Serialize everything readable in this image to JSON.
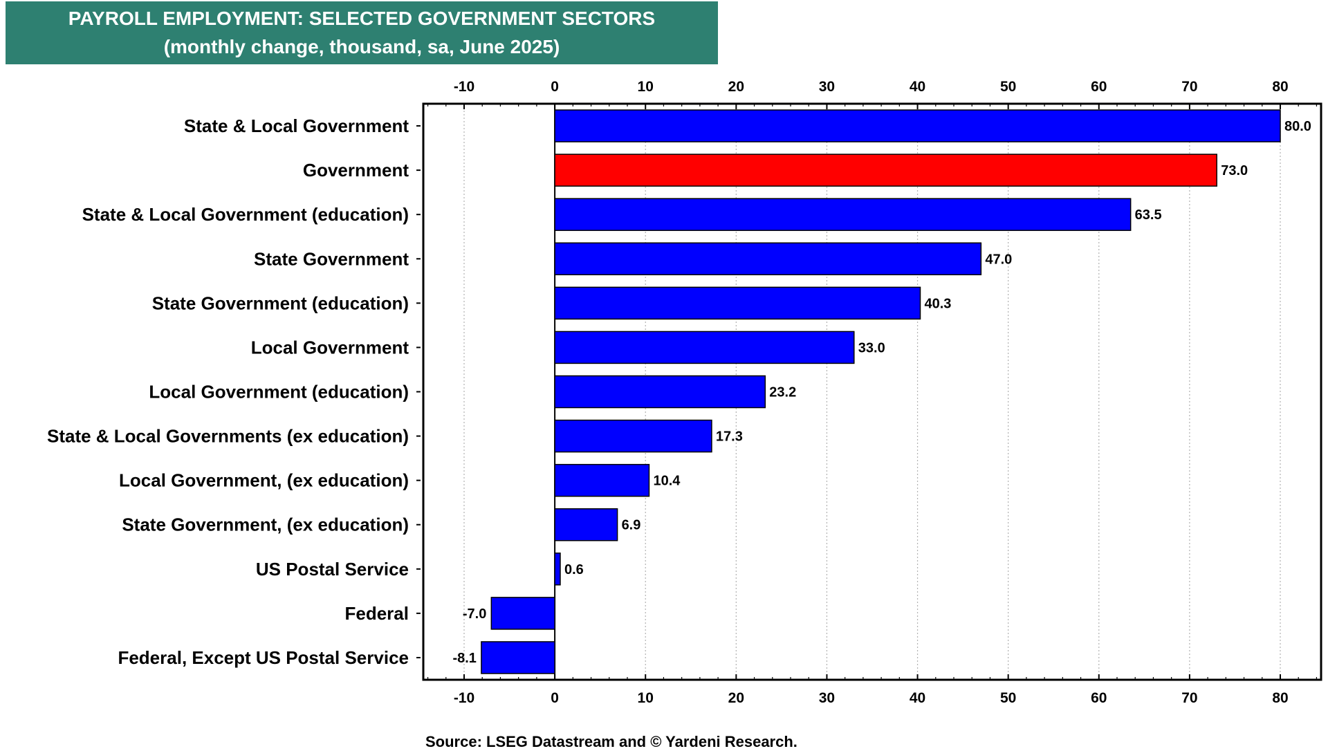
{
  "title_line1": "PAYROLL EMPLOYMENT: SELECTED GOVERNMENT SECTORS",
  "title_line2": "(monthly change, thousand, sa, June 2025)",
  "source": "Source: LSEG Datastream and © Yardeni Research.",
  "colors": {
    "title_bg": "#2e8071",
    "bar": "#0000ff",
    "highlight": "#ff0000"
  },
  "chart_data": {
    "type": "bar",
    "orientation": "horizontal",
    "categories": [
      "State & Local Government",
      "Government",
      "State & Local Government (education)",
      "State Government",
      "State Government (education)",
      "Local Government",
      "Local Government (education)",
      "State & Local Governments (ex education)",
      "Local Government, (ex education)",
      "State Government, (ex education)",
      "US Postal Service",
      "Federal",
      "Federal, Except US Postal Service"
    ],
    "values": [
      80.0,
      73.0,
      63.5,
      47.0,
      40.3,
      33.0,
      23.2,
      17.3,
      10.4,
      6.9,
      0.6,
      -7.0,
      -8.1
    ],
    "value_labels": [
      "80.0",
      "73.0",
      "63.5",
      "47.0",
      "40.3",
      "33.0",
      "23.2",
      "17.3",
      "10.4",
      "6.9",
      "0.6",
      "-7.0",
      "-8.1"
    ],
    "highlight_category": "Government",
    "xlim": [
      -14.5,
      84.5
    ],
    "xticks": [
      -10,
      0,
      10,
      20,
      30,
      40,
      50,
      60,
      70,
      80
    ],
    "xtick_labels": [
      "-10",
      "0",
      "10",
      "20",
      "30",
      "40",
      "50",
      "60",
      "70",
      "80"
    ],
    "grid": true,
    "legend": "none"
  }
}
